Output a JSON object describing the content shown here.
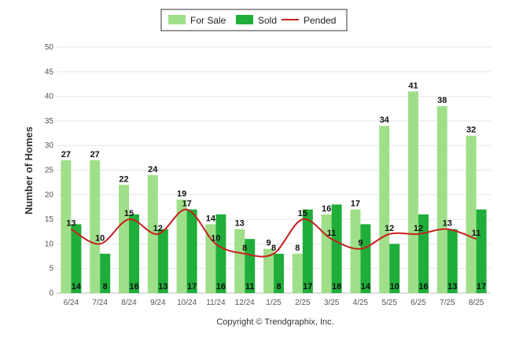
{
  "chart_data": {
    "type": "bar",
    "categories": [
      "6/24",
      "7/24",
      "8/24",
      "9/24",
      "10/24",
      "11/24",
      "12/24",
      "1/25",
      "2/25",
      "3/25",
      "4/25",
      "5/25",
      "6/25",
      "7/25",
      "8/25"
    ],
    "series": [
      {
        "name": "For Sale",
        "type": "bar",
        "color": "#9fdf8a",
        "values": [
          27,
          27,
          22,
          24,
          19,
          14,
          13,
          9,
          8,
          16,
          17,
          34,
          41,
          38,
          32
        ]
      },
      {
        "name": "Sold",
        "type": "bar",
        "color": "#1fae3a",
        "values": [
          14,
          8,
          16,
          13,
          17,
          16,
          11,
          8,
          17,
          18,
          14,
          10,
          16,
          13,
          17
        ]
      },
      {
        "name": "Pended",
        "type": "line",
        "color": "#c81e1e",
        "values": [
          13,
          10,
          15,
          12,
          17,
          10,
          8,
          8,
          15,
          11,
          9,
          12,
          12,
          13,
          11
        ]
      }
    ],
    "ylabel": "Number of Homes",
    "xlabel": "",
    "ylim": [
      0,
      50
    ],
    "yticks": [
      0,
      5,
      10,
      15,
      20,
      25,
      30,
      35,
      40,
      45,
      50
    ],
    "grid": true,
    "legend_position": "top-center",
    "credit": "Copyright © Trendgraphix, Inc."
  }
}
